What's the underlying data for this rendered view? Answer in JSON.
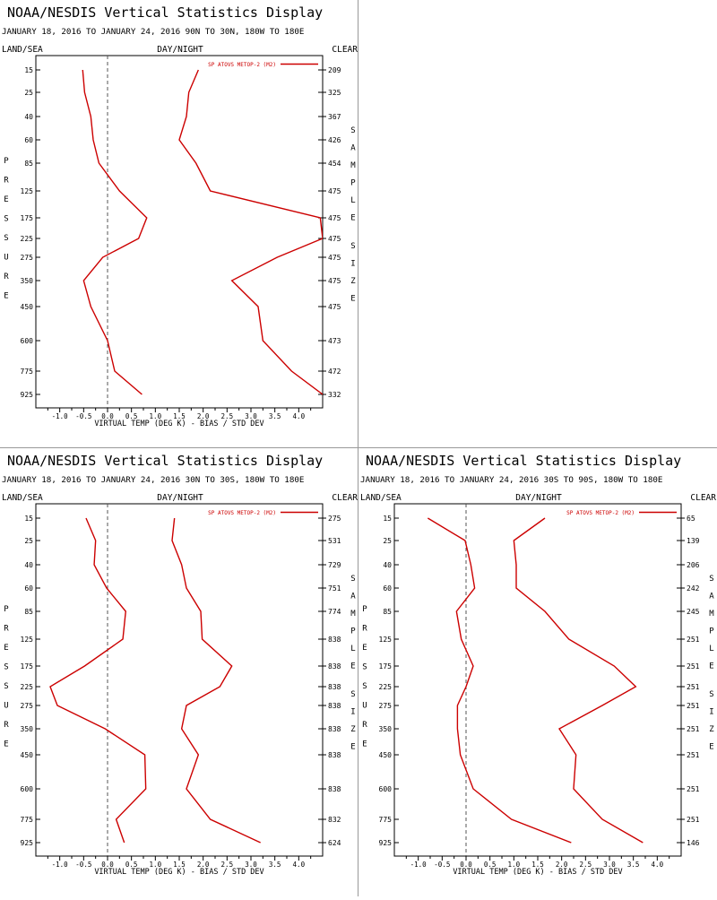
{
  "panels": [
    {
      "title": "NOAA/NESDIS Vertical Statistics Display",
      "subtitle": "JANUARY 18, 2016 TO JANUARY 24, 2016  90N TO 30N, 180W TO 180E",
      "top_left": "LAND/SEA",
      "top_center": "DAY/NIGHT",
      "top_right": "CLEAR",
      "left_label": "PRESSURE",
      "right_label": "SAMPLE SIZE",
      "xlabel": "VIRTUAL TEMP (DEG K) - BIAS / STD DEV"
    },
    {
      "title": "NOAA/NESDIS Vertical Statistics Display",
      "subtitle": "JANUARY 18, 2016 TO JANUARY 24, 2016  30N TO 30S, 180W TO 180E",
      "top_left": "LAND/SEA",
      "top_center": "DAY/NIGHT",
      "top_right": "CLEAR",
      "left_label": "PRESSURE",
      "right_label": "SAMPLE SIZE",
      "xlabel": "VIRTUAL TEMP (DEG K) - BIAS / STD DEV"
    },
    {
      "title": "NOAA/NESDIS Vertical Statistics Display",
      "subtitle": "JANUARY 18, 2016 TO JANUARY 24, 2016  30S TO 90S, 180W TO 180E",
      "top_left": "LAND/SEA",
      "top_center": "DAY/NIGHT",
      "top_right": "CLEAR",
      "left_label": "PRESSURE",
      "right_label": "SAMPLE SIZE",
      "xlabel": "VIRTUAL TEMP (DEG K) - BIAS / STD DEV"
    }
  ],
  "chart_data": [
    {
      "type": "line",
      "xlim": [
        -1.5,
        4.5
      ],
      "x_ticks": [
        "-1.0",
        "-0.5",
        "0.0",
        "0.5",
        "1.0",
        "1.5",
        "2.0",
        "2.5",
        "3.0",
        "3.5",
        "4.0"
      ],
      "x_tick_values": [
        -1.0,
        -0.5,
        0.0,
        0.5,
        1.0,
        1.5,
        2.0,
        2.5,
        3.0,
        3.5,
        4.0
      ],
      "pressure_levels": [
        "15",
        "25",
        "40",
        "60",
        "85",
        "125",
        "175",
        "225",
        "275",
        "350",
        "450",
        "600",
        "775",
        "925"
      ],
      "sample_size": [
        "209",
        "325",
        "367",
        "426",
        "454",
        "475",
        "475",
        "475",
        "475",
        "475",
        "475",
        "473",
        "472",
        "332"
      ],
      "series": [
        {
          "name": "SP ATOVS METOP-2 (M2)",
          "stat": "bias",
          "color": "#cc0000",
          "bias": [
            -0.52,
            -0.48,
            -0.35,
            -0.3,
            -0.18,
            0.25,
            0.82,
            0.65,
            -0.1,
            -0.5,
            -0.35,
            0.0,
            0.15,
            0.72
          ]
        },
        {
          "stat": "std_dev",
          "color": "#cc0000",
          "std": [
            1.9,
            1.7,
            1.65,
            1.5,
            1.85,
            2.15,
            4.45,
            4.5,
            3.55,
            2.6,
            3.15,
            3.25,
            3.85,
            4.5
          ]
        }
      ]
    },
    {
      "type": "line",
      "xlim": [
        -1.5,
        4.5
      ],
      "x_ticks": [
        "-1.0",
        "-0.5",
        "0.0",
        "0.5",
        "1.0",
        "1.5",
        "2.0",
        "2.5",
        "3.0",
        "3.5",
        "4.0"
      ],
      "x_tick_values": [
        -1.0,
        -0.5,
        0.0,
        0.5,
        1.0,
        1.5,
        2.0,
        2.5,
        3.0,
        3.5,
        4.0
      ],
      "pressure_levels": [
        "15",
        "25",
        "40",
        "60",
        "85",
        "125",
        "175",
        "225",
        "275",
        "350",
        "450",
        "600",
        "775",
        "925"
      ],
      "sample_size": [
        "275",
        "531",
        "729",
        "751",
        "774",
        "838",
        "838",
        "838",
        "838",
        "838",
        "838",
        "838",
        "832",
        "624"
      ],
      "series": [
        {
          "name": "SP ATOVS METOP-2 (M2)",
          "stat": "bias",
          "color": "#cc0000",
          "bias": [
            -0.45,
            -0.25,
            -0.28,
            -0.02,
            0.38,
            0.32,
            -0.48,
            -1.2,
            -1.05,
            -0.05,
            0.78,
            0.8,
            0.18,
            0.35
          ]
        },
        {
          "stat": "std_dev",
          "color": "#cc0000",
          "std": [
            1.4,
            1.35,
            1.55,
            1.65,
            1.95,
            1.98,
            2.6,
            2.35,
            1.65,
            1.55,
            1.9,
            1.65,
            2.15,
            3.2
          ]
        }
      ]
    },
    {
      "type": "line",
      "xlim": [
        -1.5,
        4.5
      ],
      "x_ticks": [
        "-1.0",
        "-0.5",
        "0.0",
        "0.5",
        "1.0",
        "1.5",
        "2.0",
        "2.5",
        "3.0",
        "3.5",
        "4.0"
      ],
      "x_tick_values": [
        -1.0,
        -0.5,
        0.0,
        0.5,
        1.0,
        1.5,
        2.0,
        2.5,
        3.0,
        3.5,
        4.0
      ],
      "pressure_levels": [
        "15",
        "25",
        "40",
        "60",
        "85",
        "125",
        "175",
        "225",
        "275",
        "350",
        "450",
        "600",
        "775",
        "925"
      ],
      "sample_size": [
        "65",
        "139",
        "206",
        "242",
        "245",
        "251",
        "251",
        "251",
        "251",
        "251",
        "251",
        "251",
        "251",
        "146"
      ],
      "series": [
        {
          "name": "SP ATOVS METOP-2 (M2)",
          "stat": "bias",
          "color": "#cc0000",
          "bias": [
            -0.8,
            -0.02,
            0.1,
            0.18,
            -0.2,
            -0.1,
            0.15,
            0.0,
            -0.18,
            -0.18,
            -0.12,
            0.15,
            0.95,
            2.2
          ]
        },
        {
          "stat": "std_dev",
          "color": "#cc0000",
          "std": [
            1.65,
            1.0,
            1.05,
            1.05,
            1.65,
            2.15,
            3.1,
            3.55,
            2.85,
            1.95,
            2.3,
            2.25,
            2.85,
            3.7
          ]
        }
      ]
    }
  ]
}
